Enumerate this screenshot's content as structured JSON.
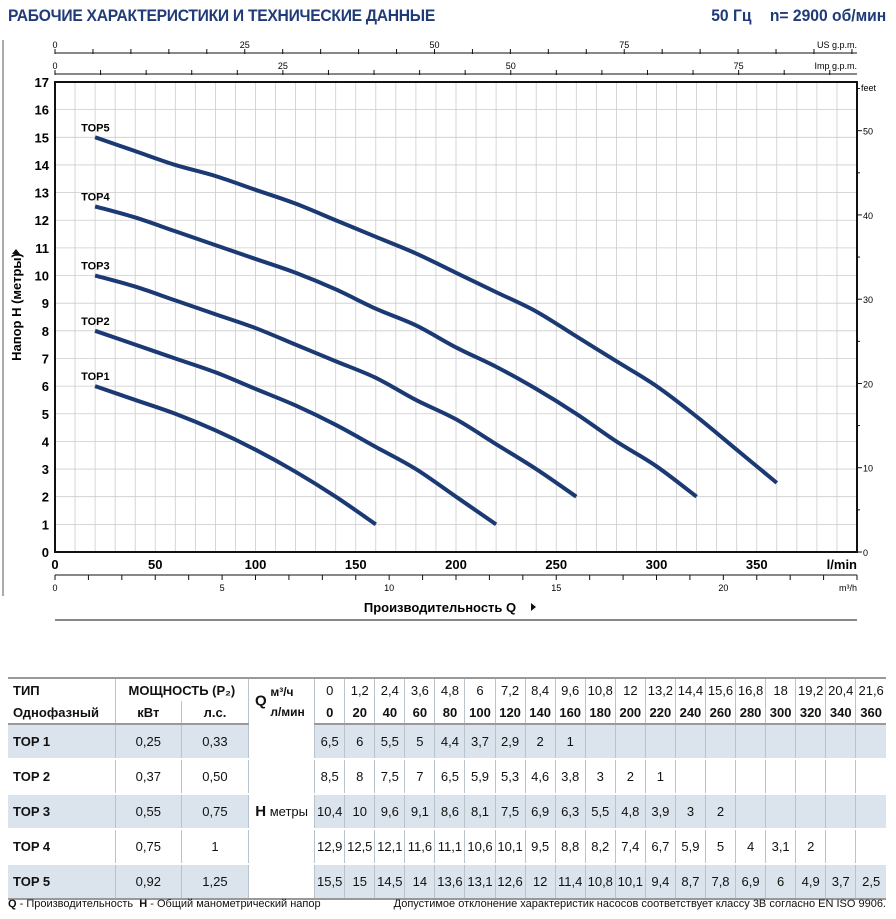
{
  "header": {
    "title": "РАБОЧИЕ ХАРАКТЕРИСТИКИ И ТЕХНИЧЕСКИЕ ДАННЫЕ",
    "frequency": "50 Гц",
    "speed": "n= 2900 об/мин"
  },
  "chart_data": {
    "type": "line",
    "ylabel": "Напор H (метры)",
    "xlabel": "Производительность Q",
    "x_unit": "l/min",
    "y_unit_right": "feet",
    "xlim": [
      0,
      400
    ],
    "ylim": [
      0,
      17
    ],
    "x_ticks": [
      0,
      50,
      100,
      150,
      200,
      250,
      300,
      350
    ],
    "y_ticks": [
      0,
      1,
      2,
      3,
      4,
      5,
      6,
      7,
      8,
      9,
      10,
      11,
      12,
      13,
      14,
      15,
      16,
      17
    ],
    "feet_ticks": [
      0,
      10,
      20,
      30,
      40,
      50
    ],
    "us_gpm_ticks": [
      0,
      25,
      50,
      75
    ],
    "us_gpm_label": "US g.p.m.",
    "imp_gpm_ticks": [
      0,
      25,
      50,
      75
    ],
    "imp_gpm_label": "Imp g.p.m.",
    "m3h_ticks": [
      0,
      5,
      10,
      15,
      20
    ],
    "m3h_label": "m³/h",
    "grid": true,
    "line_color": "#1b3a73",
    "series": [
      {
        "name": "TOP1",
        "x": [
          20,
          40,
          60,
          80,
          100,
          120,
          140,
          160
        ],
        "y": [
          6,
          5.5,
          5,
          4.4,
          3.7,
          2.9,
          2,
          1
        ]
      },
      {
        "name": "TOP2",
        "x": [
          20,
          40,
          60,
          80,
          100,
          120,
          140,
          160,
          180,
          200,
          220
        ],
        "y": [
          8,
          7.5,
          7,
          6.5,
          5.9,
          5.3,
          4.6,
          3.8,
          3,
          2,
          1
        ]
      },
      {
        "name": "TOP3",
        "x": [
          20,
          40,
          60,
          80,
          100,
          120,
          140,
          160,
          180,
          200,
          220,
          240,
          260
        ],
        "y": [
          10,
          9.6,
          9.1,
          8.6,
          8.1,
          7.5,
          6.9,
          6.3,
          5.5,
          4.8,
          3.9,
          3,
          2
        ]
      },
      {
        "name": "TOP4",
        "x": [
          20,
          40,
          60,
          80,
          100,
          120,
          140,
          160,
          180,
          200,
          220,
          240,
          260,
          280,
          300,
          320
        ],
        "y": [
          12.5,
          12.1,
          11.6,
          11.1,
          10.6,
          10.1,
          9.5,
          8.8,
          8.2,
          7.4,
          6.7,
          5.9,
          5,
          4,
          3.1,
          2
        ]
      },
      {
        "name": "TOP5",
        "x": [
          20,
          40,
          60,
          80,
          100,
          120,
          140,
          160,
          180,
          200,
          220,
          240,
          260,
          280,
          300,
          320,
          340,
          360
        ],
        "y": [
          15,
          14.5,
          14,
          13.6,
          13.1,
          12.6,
          12,
          11.4,
          10.8,
          10.1,
          9.4,
          8.7,
          7.8,
          6.9,
          6,
          4.9,
          3.7,
          2.5
        ]
      }
    ]
  },
  "table": {
    "type_header": "ТИП",
    "phase": "Однофазный",
    "power_header": "МОЩНОСТЬ (P₂)",
    "kw": "кВт",
    "hp": "л.с.",
    "q": "Q",
    "m3h": "м³/ч",
    "lmin": "л/мин",
    "h": "H",
    "meters": "метры",
    "m3h_values": [
      "0",
      "1,2",
      "2,4",
      "3,6",
      "4,8",
      "6",
      "7,2",
      "8,4",
      "9,6",
      "10,8",
      "12",
      "13,2",
      "14,4",
      "15,6",
      "16,8",
      "18",
      "19,2",
      "20,4",
      "21,6"
    ],
    "lmin_values": [
      "0",
      "20",
      "40",
      "60",
      "80",
      "100",
      "120",
      "140",
      "160",
      "180",
      "200",
      "220",
      "240",
      "260",
      "280",
      "300",
      "320",
      "340",
      "360"
    ],
    "rows": [
      {
        "model": "TOP 1",
        "kw": "0,25",
        "hp": "0,33",
        "h": [
          "6,5",
          "6",
          "5,5",
          "5",
          "4,4",
          "3,7",
          "2,9",
          "2",
          "1",
          "",
          "",
          "",
          "",
          "",
          "",
          "",
          "",
          "",
          ""
        ]
      },
      {
        "model": "TOP 2",
        "kw": "0,37",
        "hp": "0,50",
        "h": [
          "8,5",
          "8",
          "7,5",
          "7",
          "6,5",
          "5,9",
          "5,3",
          "4,6",
          "3,8",
          "3",
          "2",
          "1",
          "",
          "",
          "",
          "",
          "",
          "",
          ""
        ]
      },
      {
        "model": "TOP 3",
        "kw": "0,55",
        "hp": "0,75",
        "h": [
          "10,4",
          "10",
          "9,6",
          "9,1",
          "8,6",
          "8,1",
          "7,5",
          "6,9",
          "6,3",
          "5,5",
          "4,8",
          "3,9",
          "3",
          "2",
          "",
          "",
          "",
          "",
          ""
        ]
      },
      {
        "model": "TOP 4",
        "kw": "0,75",
        "hp": "1",
        "h": [
          "12,9",
          "12,5",
          "12,1",
          "11,6",
          "11,1",
          "10,6",
          "10,1",
          "9,5",
          "8,8",
          "8,2",
          "7,4",
          "6,7",
          "5,9",
          "5",
          "4",
          "3,1",
          "2",
          "",
          ""
        ]
      },
      {
        "model": "TOP 5",
        "kw": "0,92",
        "hp": "1,25",
        "h": [
          "15,5",
          "15",
          "14,5",
          "14",
          "13,6",
          "13,1",
          "12,6",
          "12",
          "11,4",
          "10,8",
          "10,1",
          "9,4",
          "8,7",
          "7,8",
          "6,9",
          "6",
          "4,9",
          "3,7",
          "2,5"
        ]
      }
    ]
  },
  "footer": {
    "q_abbr": "Q",
    "q_text": " - Производительность",
    "h_abbr": "H",
    "h_text": " - Общий манометрический напор",
    "tolerance": "Допустимое отклонение характеристик насосов соответствует классу 3B согласно EN ISO 9906."
  }
}
